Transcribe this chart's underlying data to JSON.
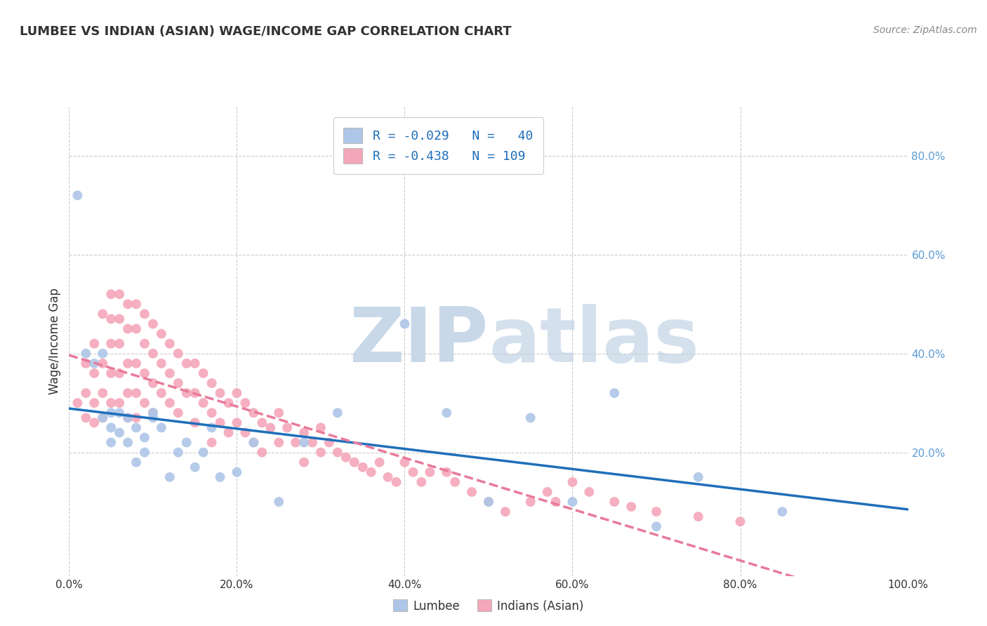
{
  "title": "LUMBEE VS INDIAN (ASIAN) WAGE/INCOME GAP CORRELATION CHART",
  "source": "Source: ZipAtlas.com",
  "ylabel": "Wage/Income Gap",
  "xlim": [
    0.0,
    1.0
  ],
  "ylim": [
    -0.05,
    0.9
  ],
  "xticks": [
    0.0,
    0.2,
    0.4,
    0.6,
    0.8,
    1.0
  ],
  "xtick_labels": [
    "0.0%",
    "20.0%",
    "40.0%",
    "60.0%",
    "80.0%",
    "100.0%"
  ],
  "yticks": [
    0.2,
    0.4,
    0.6,
    0.8
  ],
  "ytick_labels": [
    "20.0%",
    "40.0%",
    "60.0%",
    "80.0%"
  ],
  "lumbee_color": "#aec6e8",
  "indian_color": "#f4a7b9",
  "lumbee_line_color": "#1f6fba",
  "indian_line_color": "#e87a9a",
  "watermark_color": "#c8d8e8",
  "R_lumbee": -0.029,
  "N_lumbee": 40,
  "R_indian": -0.438,
  "N_indian": 109,
  "legend_labels": [
    "Lumbee",
    "Indians (Asian)"
  ],
  "background_color": "#ffffff",
  "grid_color": "#cccccc",
  "lumbee_x": [
    0.01,
    0.02,
    0.03,
    0.04,
    0.04,
    0.05,
    0.05,
    0.05,
    0.06,
    0.06,
    0.07,
    0.07,
    0.08,
    0.08,
    0.09,
    0.09,
    0.1,
    0.1,
    0.11,
    0.12,
    0.13,
    0.14,
    0.15,
    0.16,
    0.17,
    0.18,
    0.2,
    0.22,
    0.25,
    0.28,
    0.32,
    0.4,
    0.45,
    0.5,
    0.55,
    0.6,
    0.65,
    0.7,
    0.75,
    0.85
  ],
  "lumbee_y": [
    0.72,
    0.4,
    0.38,
    0.4,
    0.27,
    0.28,
    0.25,
    0.22,
    0.28,
    0.24,
    0.27,
    0.22,
    0.25,
    0.18,
    0.23,
    0.2,
    0.28,
    0.27,
    0.25,
    0.15,
    0.2,
    0.22,
    0.17,
    0.2,
    0.25,
    0.15,
    0.16,
    0.22,
    0.1,
    0.22,
    0.28,
    0.46,
    0.28,
    0.1,
    0.27,
    0.1,
    0.32,
    0.05,
    0.15,
    0.08
  ],
  "indian_x": [
    0.01,
    0.02,
    0.02,
    0.02,
    0.03,
    0.03,
    0.03,
    0.03,
    0.04,
    0.04,
    0.04,
    0.04,
    0.05,
    0.05,
    0.05,
    0.05,
    0.05,
    0.06,
    0.06,
    0.06,
    0.06,
    0.06,
    0.07,
    0.07,
    0.07,
    0.07,
    0.07,
    0.08,
    0.08,
    0.08,
    0.08,
    0.08,
    0.09,
    0.09,
    0.09,
    0.09,
    0.1,
    0.1,
    0.1,
    0.1,
    0.11,
    0.11,
    0.11,
    0.12,
    0.12,
    0.12,
    0.13,
    0.13,
    0.13,
    0.14,
    0.14,
    0.15,
    0.15,
    0.15,
    0.16,
    0.16,
    0.17,
    0.17,
    0.17,
    0.18,
    0.18,
    0.19,
    0.19,
    0.2,
    0.2,
    0.21,
    0.21,
    0.22,
    0.22,
    0.23,
    0.23,
    0.24,
    0.25,
    0.25,
    0.26,
    0.27,
    0.28,
    0.28,
    0.29,
    0.3,
    0.3,
    0.31,
    0.32,
    0.33,
    0.34,
    0.35,
    0.36,
    0.37,
    0.38,
    0.39,
    0.4,
    0.41,
    0.42,
    0.43,
    0.45,
    0.46,
    0.48,
    0.5,
    0.52,
    0.55,
    0.57,
    0.58,
    0.6,
    0.62,
    0.65,
    0.67,
    0.7,
    0.75,
    0.8
  ],
  "indian_y": [
    0.3,
    0.38,
    0.32,
    0.27,
    0.42,
    0.36,
    0.3,
    0.26,
    0.48,
    0.38,
    0.32,
    0.27,
    0.52,
    0.47,
    0.42,
    0.36,
    0.3,
    0.52,
    0.47,
    0.42,
    0.36,
    0.3,
    0.5,
    0.45,
    0.38,
    0.32,
    0.27,
    0.5,
    0.45,
    0.38,
    0.32,
    0.27,
    0.48,
    0.42,
    0.36,
    0.3,
    0.46,
    0.4,
    0.34,
    0.28,
    0.44,
    0.38,
    0.32,
    0.42,
    0.36,
    0.3,
    0.4,
    0.34,
    0.28,
    0.38,
    0.32,
    0.38,
    0.32,
    0.26,
    0.36,
    0.3,
    0.34,
    0.28,
    0.22,
    0.32,
    0.26,
    0.3,
    0.24,
    0.32,
    0.26,
    0.3,
    0.24,
    0.28,
    0.22,
    0.26,
    0.2,
    0.25,
    0.28,
    0.22,
    0.25,
    0.22,
    0.24,
    0.18,
    0.22,
    0.25,
    0.2,
    0.22,
    0.2,
    0.19,
    0.18,
    0.17,
    0.16,
    0.18,
    0.15,
    0.14,
    0.18,
    0.16,
    0.14,
    0.16,
    0.16,
    0.14,
    0.12,
    0.1,
    0.08,
    0.1,
    0.12,
    0.1,
    0.14,
    0.12,
    0.1,
    0.09,
    0.08,
    0.07,
    0.06
  ]
}
